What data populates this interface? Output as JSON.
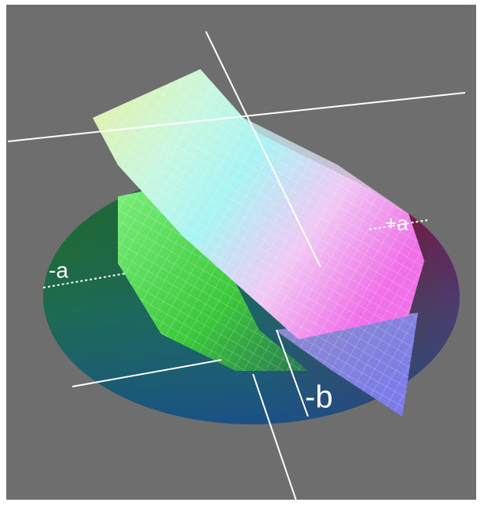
{
  "labels": {
    "plus_a": "+a",
    "minus_a": "-a",
    "minus_b": "-b"
  }
}
